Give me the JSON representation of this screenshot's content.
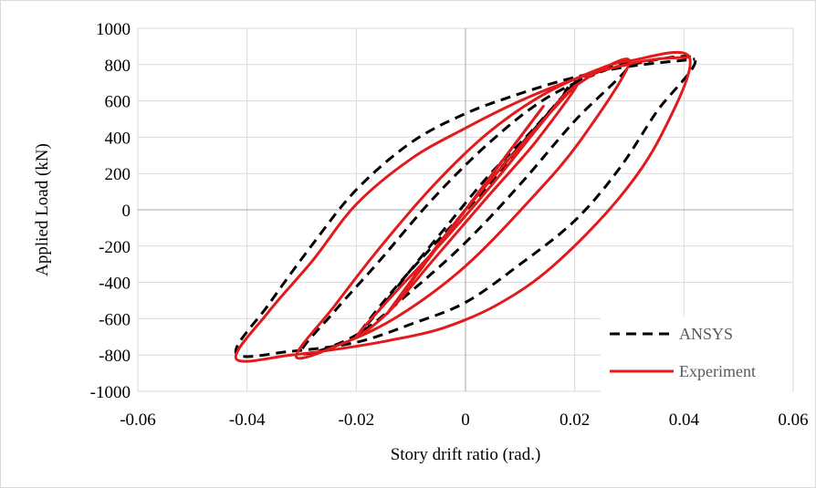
{
  "chart_data": {
    "type": "line",
    "title": "",
    "xlabel": "Story drift ratio (rad.)",
    "ylabel": "Applied Load (kN)",
    "xlim": [
      -0.06,
      0.06
    ],
    "ylim": [
      -1000,
      1000
    ],
    "x_ticks": [
      -0.06,
      -0.04,
      -0.02,
      0,
      0.02,
      0.04,
      0.06
    ],
    "x_tick_labels": [
      "-0.06",
      "-0.04",
      "-0.02",
      "0",
      "0.02",
      "0.04",
      "0.06"
    ],
    "y_ticks": [
      1000,
      800,
      600,
      400,
      200,
      0,
      -200,
      -400,
      -600,
      -800,
      -1000
    ],
    "y_tick_labels": [
      "1000",
      "800",
      "600",
      "400",
      "200",
      "0",
      "-200",
      "-400",
      "-600",
      "-800",
      "-1000"
    ],
    "grid": true,
    "legend_position": "bottom-right",
    "series": [
      {
        "name": "ANSYS",
        "color": "#000000",
        "dash": "dashed",
        "points": [
          [
            0,
            0
          ],
          [
            0.014,
            560
          ],
          [
            -0.014,
            -560
          ],
          [
            0,
            0
          ],
          [
            0.02,
            700
          ],
          [
            0.012,
            430
          ],
          [
            0.004,
            180
          ],
          [
            -0.004,
            -110
          ],
          [
            -0.01,
            -330
          ],
          [
            -0.016,
            -560
          ],
          [
            -0.02,
            -700
          ],
          [
            -0.014,
            -470
          ],
          [
            -0.006,
            -200
          ],
          [
            0.002,
            60
          ],
          [
            0.01,
            340
          ],
          [
            0.017,
            590
          ],
          [
            0.02,
            700
          ],
          [
            0.03,
            800
          ],
          [
            0.02,
            490
          ],
          [
            0.01,
            140
          ],
          [
            0,
            -180
          ],
          [
            -0.01,
            -450
          ],
          [
            -0.02,
            -690
          ],
          [
            -0.03,
            -790
          ],
          [
            -0.024,
            -560
          ],
          [
            -0.016,
            -290
          ],
          [
            -0.006,
            60
          ],
          [
            0.004,
            360
          ],
          [
            0.014,
            600
          ],
          [
            0.024,
            750
          ],
          [
            0.03,
            800
          ],
          [
            0.042,
            830
          ],
          [
            0.035,
            540
          ],
          [
            0.028,
            220
          ],
          [
            0.02,
            -60
          ],
          [
            0.01,
            -300
          ],
          [
            0,
            -510
          ],
          [
            -0.01,
            -630
          ],
          [
            -0.02,
            -730
          ],
          [
            -0.032,
            -780
          ],
          [
            -0.042,
            -790
          ],
          [
            -0.036,
            -520
          ],
          [
            -0.028,
            -190
          ],
          [
            -0.02,
            110
          ],
          [
            -0.01,
            370
          ],
          [
            0,
            530
          ],
          [
            0.01,
            640
          ],
          [
            0.02,
            730
          ],
          [
            0.03,
            790
          ],
          [
            0.042,
            830
          ]
        ]
      },
      {
        "name": "Experiment",
        "color": "#e31a1c",
        "dash": "solid",
        "points": [
          [
            0,
            0
          ],
          [
            0.014,
            560
          ],
          [
            -0.014,
            -560
          ],
          [
            0,
            0
          ],
          [
            0.02,
            680
          ],
          [
            0.013,
            380
          ],
          [
            0.004,
            70
          ],
          [
            -0.006,
            -280
          ],
          [
            -0.014,
            -560
          ],
          [
            -0.02,
            -700
          ],
          [
            -0.013,
            -460
          ],
          [
            -0.004,
            -170
          ],
          [
            0.006,
            180
          ],
          [
            0.014,
            480
          ],
          [
            0.02,
            680
          ],
          [
            0.03,
            820
          ],
          [
            0.021,
            380
          ],
          [
            0.012,
            60
          ],
          [
            0,
            -310
          ],
          [
            -0.012,
            -580
          ],
          [
            -0.022,
            -730
          ],
          [
            -0.031,
            -810
          ],
          [
            -0.024,
            -530
          ],
          [
            -0.016,
            -220
          ],
          [
            -0.006,
            130
          ],
          [
            0.004,
            420
          ],
          [
            0.014,
            630
          ],
          [
            0.024,
            770
          ],
          [
            0.03,
            820
          ],
          [
            0.041,
            840
          ],
          [
            0.036,
            420
          ],
          [
            0.028,
            60
          ],
          [
            0.016,
            -310
          ],
          [
            0.006,
            -520
          ],
          [
            -0.004,
            -650
          ],
          [
            -0.014,
            -720
          ],
          [
            -0.024,
            -770
          ],
          [
            -0.032,
            -800
          ],
          [
            -0.042,
            -820
          ],
          [
            -0.036,
            -560
          ],
          [
            -0.028,
            -280
          ],
          [
            -0.02,
            30
          ],
          [
            -0.01,
            280
          ],
          [
            0,
            450
          ],
          [
            0.01,
            600
          ],
          [
            0.02,
            720
          ],
          [
            0.028,
            790
          ],
          [
            0.035,
            830
          ],
          [
            0.041,
            840
          ]
        ]
      }
    ]
  }
}
